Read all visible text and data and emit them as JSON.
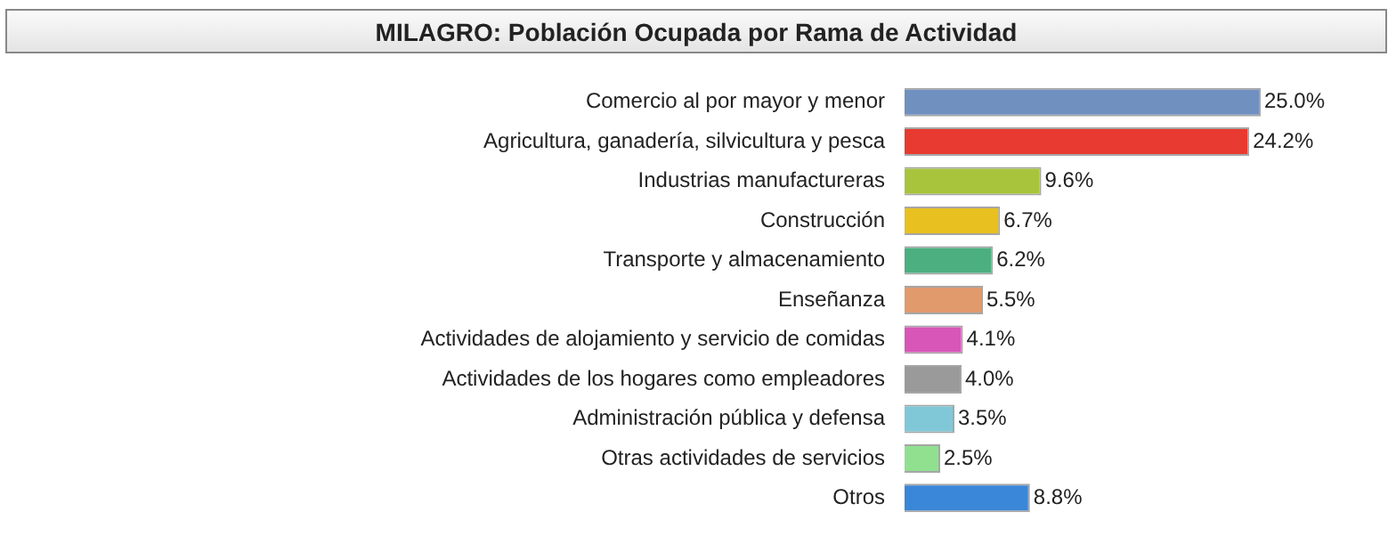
{
  "chart_data": {
    "type": "bar",
    "orientation": "horizontal",
    "title": "MILAGRO: Población Ocupada por Rama de Actividad",
    "categories": [
      "Comercio al por mayor y menor",
      "Agricultura, ganadería, silvicultura y pesca",
      "Industrias manufactureras",
      "Construcción",
      "Transporte y almacenamiento",
      "Enseñanza",
      "Actividades de alojamiento y servicio de comidas",
      "Actividades de los hogares como empleadores",
      "Administración pública y defensa",
      "Otras actividades de servicios",
      "Otros"
    ],
    "values": [
      25.0,
      24.2,
      9.6,
      6.7,
      6.2,
      5.5,
      4.1,
      4.0,
      3.5,
      2.5,
      8.8
    ],
    "value_labels": [
      "25.0%",
      "24.2%",
      "9.6%",
      "6.7%",
      "6.2%",
      "5.5%",
      "4.1%",
      "4.0%",
      "3.5%",
      "2.5%",
      "8.8%"
    ],
    "colors": [
      "#7090c0",
      "#e83a30",
      "#a8c43c",
      "#e8c020",
      "#4caf80",
      "#e09a6c",
      "#d856b8",
      "#9a9a9a",
      "#80c8d8",
      "#90e090",
      "#3a86d8"
    ],
    "legend": false
  }
}
